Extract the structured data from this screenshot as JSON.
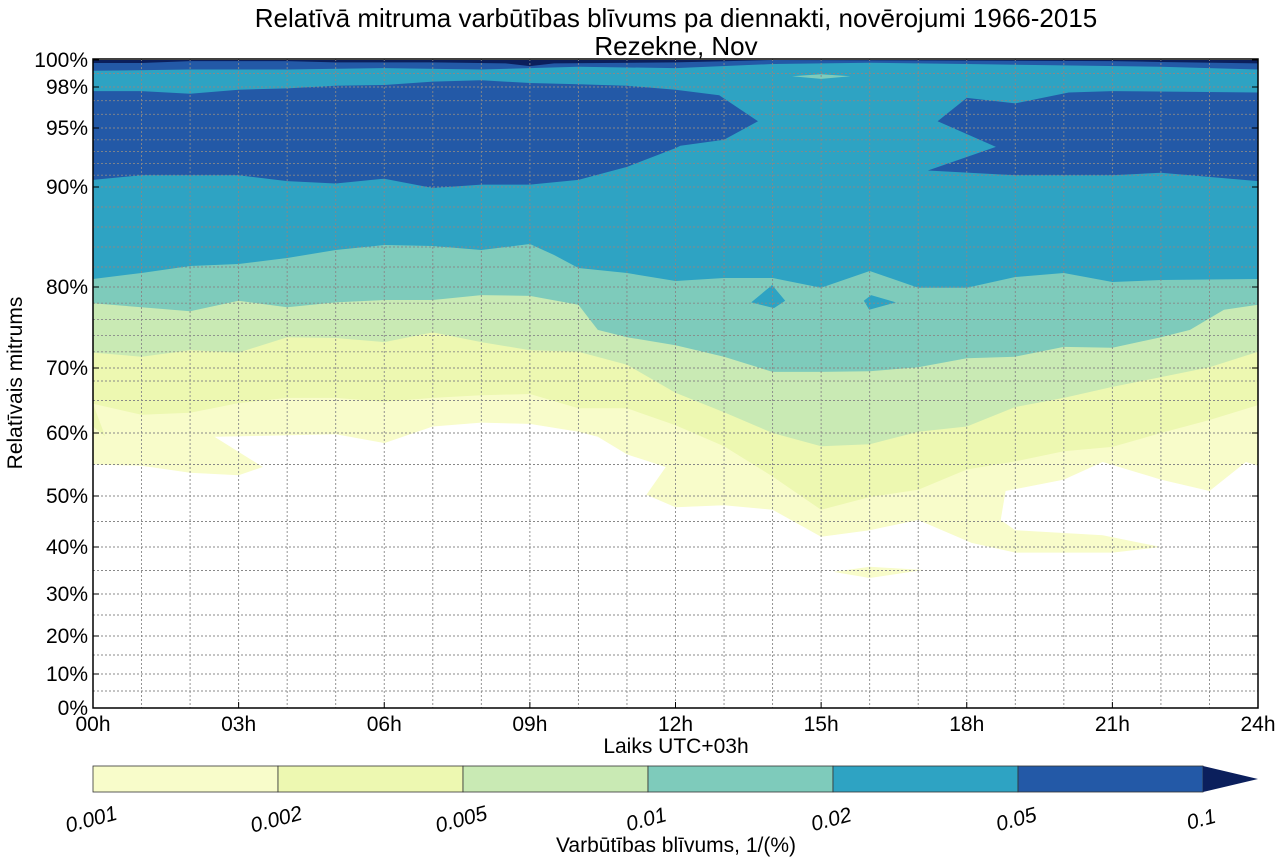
{
  "chart_data": {
    "type": "contour",
    "title": "Relatīvā mitruma varbūtības blīvums pa diennakti, novērojumi 1966-2015",
    "subtitle": "Rezekne, Nov",
    "xlabel": "Laiks UTC+03h",
    "ylabel": "Relatīvais mitrums",
    "xlim": [
      0,
      24
    ],
    "ylim": [
      0,
      100
    ],
    "grid": true,
    "xticks": [
      {
        "value": 0,
        "label": "00h"
      },
      {
        "value": 3,
        "label": "03h"
      },
      {
        "value": 6,
        "label": "06h"
      },
      {
        "value": 9,
        "label": "09h"
      },
      {
        "value": 12,
        "label": "12h"
      },
      {
        "value": 15,
        "label": "15h"
      },
      {
        "value": 18,
        "label": "18h"
      },
      {
        "value": 21,
        "label": "21h"
      },
      {
        "value": 24,
        "label": "24h"
      }
    ],
    "yticks": [
      {
        "value": 0,
        "label": "0%"
      },
      {
        "value": 10,
        "label": "10%"
      },
      {
        "value": 20,
        "label": "20%"
      },
      {
        "value": 30,
        "label": "30%"
      },
      {
        "value": 40,
        "label": "40%"
      },
      {
        "value": 50,
        "label": "50%"
      },
      {
        "value": 60,
        "label": "60%"
      },
      {
        "value": 70,
        "label": "70%"
      },
      {
        "value": 80,
        "label": "80%"
      },
      {
        "value": 90,
        "label": "90%"
      },
      {
        "value": 95,
        "label": "95%"
      },
      {
        "value": 98,
        "label": "98%"
      },
      {
        "value": 100,
        "label": "100%"
      }
    ],
    "colorbar": {
      "label": "Varbūtības blīvums, 1/(%)",
      "ticks": [
        "0.001",
        "0.002",
        "0.005",
        "0.01",
        "0.02",
        "0.05",
        "0.1"
      ],
      "colors": [
        "#f8fcca",
        "#edf8b1",
        "#c9eab4",
        "#7ecbbb",
        "#2ea3c3",
        "#2359a7"
      ],
      "extend_color": "#0b1f5c",
      "extend": "max"
    },
    "level_colors": {
      "0.001": "#f8fcca",
      "0.002": "#edf8b1",
      "0.005": "#c9eab4",
      "0.01": "#7ecbbb",
      "0.02": "#2ea3c3",
      "0.05": "#2359a7",
      "0.1": "#0b1f5c"
    },
    "regions": [
      {
        "level": "0.001",
        "points": [
          [
            0,
            100
          ],
          [
            24,
            100
          ],
          [
            24,
            54.8
          ],
          [
            23.75,
            55.4
          ],
          [
            23,
            50.8
          ],
          [
            22,
            52.6
          ],
          [
            20.8,
            55.4
          ],
          [
            20,
            52.6
          ],
          [
            18.8,
            50.8
          ],
          [
            18.7,
            45.3
          ],
          [
            19,
            43.3
          ],
          [
            20.8,
            42.3
          ],
          [
            22,
            40
          ],
          [
            21,
            38.8
          ],
          [
            19,
            38.8
          ],
          [
            18.1,
            40.8
          ],
          [
            17,
            45.3
          ],
          [
            16,
            43.3
          ],
          [
            15,
            42
          ],
          [
            14,
            47.3
          ],
          [
            13,
            48.2
          ],
          [
            12,
            47.8
          ],
          [
            11.4,
            50.2
          ],
          [
            11.8,
            54.6
          ],
          [
            11,
            56.6
          ],
          [
            10.4,
            59.4
          ],
          [
            10,
            60.2
          ],
          [
            9,
            61.4
          ],
          [
            8,
            61.6
          ],
          [
            7,
            61
          ],
          [
            6,
            58.4
          ],
          [
            5,
            59.8
          ],
          [
            2.5,
            59.4
          ],
          [
            3.5,
            54.6
          ],
          [
            3,
            53.3
          ],
          [
            2,
            53.7
          ],
          [
            1,
            54.8
          ],
          [
            0,
            55
          ]
        ]
      },
      {
        "level": "0.001",
        "points": [
          [
            15.25,
            34.7
          ],
          [
            16,
            35.8
          ],
          [
            17.1,
            35.1
          ],
          [
            16,
            33.4
          ]
        ]
      },
      {
        "level": "0.002",
        "points": [
          [
            0,
            100
          ],
          [
            24,
            100
          ],
          [
            24,
            64.3
          ],
          [
            23,
            62
          ],
          [
            22,
            60
          ],
          [
            21,
            57.8
          ],
          [
            20,
            57.1
          ],
          [
            19,
            55.5
          ],
          [
            18,
            54.2
          ],
          [
            17,
            51
          ],
          [
            16,
            49.8
          ],
          [
            15,
            47.3
          ],
          [
            14,
            53.1
          ],
          [
            13,
            57.9
          ],
          [
            12,
            61.2
          ],
          [
            11,
            63.8
          ],
          [
            10,
            63.8
          ],
          [
            9,
            66
          ],
          [
            8,
            65.8
          ],
          [
            7,
            65.4
          ],
          [
            6,
            64.8
          ],
          [
            5,
            65.4
          ],
          [
            4,
            65.4
          ],
          [
            3,
            64.6
          ],
          [
            2,
            63.1
          ],
          [
            1,
            62.8
          ],
          [
            0,
            64.5
          ]
        ]
      },
      {
        "level": "0.002",
        "points": [
          [
            0,
            64.5
          ],
          [
            0.25,
            59.5
          ],
          [
            0,
            61
          ]
        ]
      },
      {
        "level": "0.005",
        "points": [
          [
            0,
            100
          ],
          [
            24,
            100
          ],
          [
            24,
            72
          ],
          [
            23,
            70.1
          ],
          [
            22,
            68.6
          ],
          [
            21,
            67.1
          ],
          [
            20,
            65.4
          ],
          [
            19,
            64
          ],
          [
            18,
            61
          ],
          [
            17,
            60.2
          ],
          [
            16,
            58.2
          ],
          [
            15,
            57.9
          ],
          [
            14,
            60
          ],
          [
            13,
            63.2
          ],
          [
            12,
            66.2
          ],
          [
            11,
            70.4
          ],
          [
            10,
            72
          ],
          [
            9,
            72.2
          ],
          [
            8,
            73.2
          ],
          [
            7,
            74.4
          ],
          [
            6,
            73.2
          ],
          [
            5,
            73.7
          ],
          [
            4,
            73.8
          ],
          [
            3,
            71.9
          ],
          [
            2,
            72.2
          ],
          [
            1,
            71.4
          ],
          [
            0,
            71.9
          ]
        ]
      },
      {
        "level": "0.01",
        "points": [
          [
            0,
            100
          ],
          [
            24,
            100
          ],
          [
            24,
            77.8
          ],
          [
            23.3,
            77.2
          ],
          [
            22.6,
            74.7
          ],
          [
            22,
            73.8
          ],
          [
            21,
            72.5
          ],
          [
            20,
            72.6
          ],
          [
            19,
            71.4
          ],
          [
            18,
            71.2
          ],
          [
            17,
            70.1
          ],
          [
            16,
            69.5
          ],
          [
            15,
            69.4
          ],
          [
            14,
            69.4
          ],
          [
            13,
            71.4
          ],
          [
            12,
            72.8
          ],
          [
            11,
            73.8
          ],
          [
            10.4,
            74.7
          ],
          [
            10,
            77.8
          ],
          [
            9,
            78.9
          ],
          [
            8,
            79
          ],
          [
            7,
            78.4
          ],
          [
            6,
            78.4
          ],
          [
            5,
            78.1
          ],
          [
            4,
            77.5
          ],
          [
            3,
            78.3
          ],
          [
            2,
            77
          ],
          [
            1,
            77.5
          ],
          [
            0,
            78
          ]
        ]
      },
      {
        "level": "0.02",
        "points": [
          [
            0,
            100
          ],
          [
            24,
            100
          ],
          [
            24,
            80.8
          ],
          [
            22,
            80.7
          ],
          [
            21,
            80.5
          ],
          [
            20,
            81.4
          ],
          [
            19,
            81
          ],
          [
            18,
            79.9
          ],
          [
            17,
            79.9
          ],
          [
            16,
            81.6
          ],
          [
            15,
            79.9
          ],
          [
            14,
            80.9
          ],
          [
            13,
            80.9
          ],
          [
            12,
            80.6
          ],
          [
            11,
            81.4
          ],
          [
            10,
            81.9
          ],
          [
            9.5,
            83.2
          ],
          [
            9,
            84.3
          ],
          [
            8,
            83.7
          ],
          [
            7,
            84.1
          ],
          [
            6,
            84.2
          ],
          [
            5,
            83.7
          ],
          [
            4,
            82.9
          ],
          [
            3,
            82.3
          ],
          [
            2,
            82.1
          ],
          [
            1,
            81.4
          ],
          [
            0,
            80.8
          ]
        ]
      },
      {
        "level": "0.02",
        "points": [
          [
            13.99,
            80.2
          ],
          [
            13.56,
            78.1
          ],
          [
            14.03,
            77.4
          ],
          [
            14.26,
            78.3
          ]
        ]
      },
      {
        "level": "0.02",
        "points": [
          [
            15.88,
            78.3
          ],
          [
            15.99,
            77.2
          ],
          [
            16.54,
            78.1
          ],
          [
            16.03,
            79
          ]
        ]
      },
      {
        "level": "0.05",
        "points": [
          [
            0,
            97.7
          ],
          [
            1,
            97.7
          ],
          [
            2,
            97.5
          ],
          [
            3,
            97.8
          ],
          [
            4,
            97.9
          ],
          [
            5,
            98.1
          ],
          [
            6,
            98.15
          ],
          [
            7,
            98.4
          ],
          [
            8,
            98.5
          ],
          [
            9,
            98.3
          ],
          [
            10,
            98.2
          ],
          [
            11,
            98.1
          ],
          [
            12,
            97.8
          ],
          [
            12.9,
            97.4
          ],
          [
            13.7,
            95.5
          ],
          [
            13,
            94
          ],
          [
            12.1,
            93.5
          ],
          [
            12,
            93.3
          ],
          [
            11,
            91.7
          ],
          [
            10,
            90.6
          ],
          [
            9,
            90.2
          ],
          [
            8,
            90.2
          ],
          [
            7,
            89.9
          ],
          [
            6,
            90.7
          ],
          [
            5,
            90.3
          ],
          [
            4,
            90.5
          ],
          [
            3,
            91
          ],
          [
            2,
            91
          ],
          [
            1,
            91
          ],
          [
            0,
            90.6
          ]
        ]
      },
      {
        "level": "0.05",
        "points": [
          [
            17.4,
            95.5
          ],
          [
            18,
            97.2
          ],
          [
            19,
            96.8
          ],
          [
            20.1,
            97.6
          ],
          [
            21,
            97.7
          ],
          [
            24,
            97.6
          ],
          [
            24,
            90.5
          ],
          [
            22,
            91.2
          ],
          [
            21,
            91
          ],
          [
            19,
            91
          ],
          [
            17.2,
            91.4
          ],
          [
            18.6,
            93.4
          ]
        ]
      },
      {
        "level": "0.05",
        "points": [
          [
            0,
            100
          ],
          [
            24,
            100
          ],
          [
            24,
            99.3
          ],
          [
            22,
            99.5
          ],
          [
            20,
            99.6
          ],
          [
            18,
            99.7
          ],
          [
            16,
            99.8
          ],
          [
            14,
            99.7
          ],
          [
            12,
            99.4
          ],
          [
            10,
            99.5
          ],
          [
            8,
            99.3
          ],
          [
            6,
            99.4
          ],
          [
            4,
            99.3
          ],
          [
            2,
            99.3
          ],
          [
            0,
            99.2
          ]
        ]
      },
      {
        "level": "0.01",
        "points": [
          [
            14.4,
            98.8
          ],
          [
            15,
            98.95
          ],
          [
            15.6,
            98.8
          ],
          [
            15,
            98.6
          ]
        ]
      },
      {
        "level": "0.1",
        "points": [
          [
            0,
            100
          ],
          [
            24,
            100
          ],
          [
            24,
            99.75
          ],
          [
            22,
            99.85
          ],
          [
            21,
            99.92
          ],
          [
            14,
            100
          ],
          [
            13,
            99.9
          ],
          [
            12,
            99.82
          ],
          [
            9.5,
            99.75
          ],
          [
            9,
            99.55
          ],
          [
            8.5,
            99.75
          ],
          [
            7,
            99.82
          ],
          [
            5,
            99.82
          ],
          [
            4,
            99.92
          ],
          [
            2,
            99.92
          ],
          [
            1,
            99.78
          ],
          [
            0,
            99.78
          ]
        ]
      }
    ]
  }
}
